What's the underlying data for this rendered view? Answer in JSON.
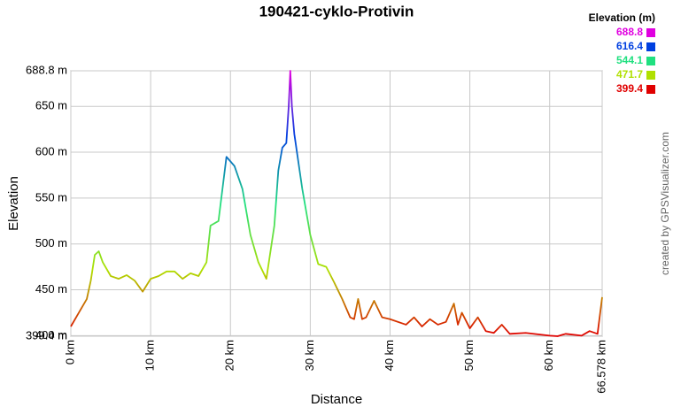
{
  "chart_data": {
    "type": "line",
    "title": "190421-cyklo-Protivin",
    "xlabel": "Distance",
    "ylabel": "Elevation",
    "credit": "created by GPSVisualizer.com",
    "legend_title": "Elevation (m)",
    "legend": [
      {
        "value": 688.8,
        "color": "#e000e0"
      },
      {
        "value": 616.4,
        "color": "#0040e0"
      },
      {
        "value": 544.1,
        "color": "#20e080"
      },
      {
        "value": 471.7,
        "color": "#b0e000"
      },
      {
        "value": 399.4,
        "color": "#e00000"
      }
    ],
    "x": [
      0,
      1,
      2,
      2.5,
      3,
      3.5,
      4,
      5,
      6,
      7,
      8,
      9,
      10,
      11,
      12,
      13,
      14,
      15,
      16,
      17,
      17.5,
      18.5,
      19.5,
      20.5,
      21.5,
      22.5,
      23.5,
      24.5,
      25.5,
      26,
      26.5,
      27,
      27.3,
      27.5,
      27.7,
      28,
      29,
      30,
      31,
      32,
      33,
      34,
      35,
      35.5,
      36,
      36.5,
      37,
      38,
      39,
      40,
      42,
      43,
      44,
      45,
      46,
      47,
      48,
      48.5,
      49,
      50,
      51,
      52,
      53,
      54,
      55,
      57,
      60,
      61,
      62,
      64,
      65,
      66,
      66.578
    ],
    "values": [
      410,
      425,
      440,
      460,
      488,
      492,
      480,
      465,
      462,
      466,
      460,
      448,
      462,
      465,
      470,
      470,
      462,
      468,
      465,
      480,
      520,
      525,
      595,
      585,
      560,
      510,
      480,
      462,
      520,
      580,
      605,
      610,
      650,
      688.8,
      650,
      620,
      560,
      510,
      478,
      475,
      458,
      440,
      420,
      418,
      440,
      418,
      420,
      438,
      420,
      418,
      412,
      420,
      410,
      418,
      412,
      415,
      435,
      412,
      425,
      408,
      420,
      405,
      403,
      412,
      402,
      403,
      400,
      399.4,
      402,
      400,
      405,
      402,
      442
    ],
    "xlim": [
      0,
      66.578
    ],
    "ylim": [
      399.4,
      688.8
    ],
    "xticks": [
      {
        "value": 0,
        "label": "0 km"
      },
      {
        "value": 10,
        "label": "10 km"
      },
      {
        "value": 20,
        "label": "20 km"
      },
      {
        "value": 30,
        "label": "30 km"
      },
      {
        "value": 40,
        "label": "40 km"
      },
      {
        "value": 50,
        "label": "50 km"
      },
      {
        "value": 60,
        "label": "60 km"
      },
      {
        "value": 66.578,
        "label": "66.578 km"
      }
    ],
    "yticks": [
      {
        "value": 399.4,
        "label": "399.4 m"
      },
      {
        "value": 400,
        "label": "400 m"
      },
      {
        "value": 450,
        "label": "450 m"
      },
      {
        "value": 500,
        "label": "500 m"
      },
      {
        "value": 550,
        "label": "550 m"
      },
      {
        "value": 600,
        "label": "600 m"
      },
      {
        "value": 650,
        "label": "650 m"
      },
      {
        "value": 688.8,
        "label": "688.8 m"
      }
    ],
    "grid": true
  }
}
